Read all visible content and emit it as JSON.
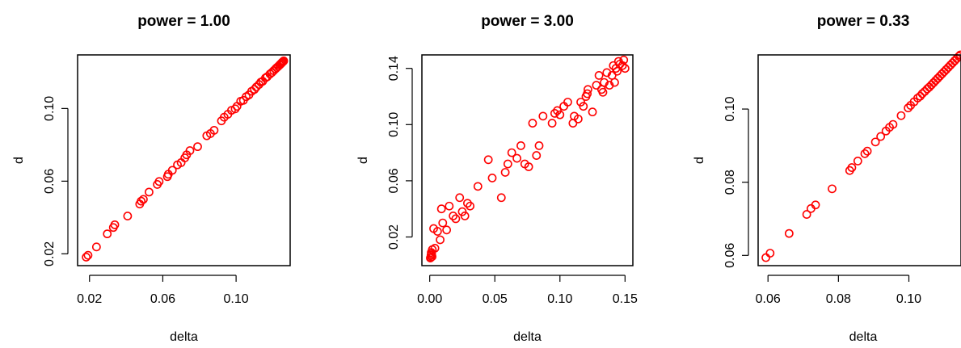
{
  "chart_data": [
    {
      "type": "scatter",
      "title": "power = 1.00",
      "xlabel": "delta",
      "ylabel": "d",
      "xlim": [
        0.0135,
        0.1295
      ],
      "ylim": [
        0.0135,
        0.1295
      ],
      "xticks": [
        "0.02",
        "0.06",
        "0.10"
      ],
      "yticks": [
        "0.02",
        "0.06",
        "0.10"
      ],
      "grid": false,
      "point_color": "#ff0000",
      "x": [
        0.0182,
        0.0192,
        0.0238,
        0.0297,
        0.033,
        0.0338,
        0.0408,
        0.0474,
        0.0482,
        0.0494,
        0.0525,
        0.057,
        0.058,
        0.0625,
        0.063,
        0.0652,
        0.068,
        0.07,
        0.072,
        0.073,
        0.0748,
        0.079,
        0.084,
        0.086,
        0.088,
        0.092,
        0.0935,
        0.0955,
        0.0975,
        0.0995,
        0.1005,
        0.1025,
        0.104,
        0.1055,
        0.107,
        0.1085,
        0.11,
        0.111,
        0.1125,
        0.1135,
        0.1145,
        0.116,
        0.117,
        0.1185,
        0.1195,
        0.1205,
        0.1215,
        0.1222,
        0.123,
        0.1238,
        0.1243,
        0.1248,
        0.1252,
        0.1256,
        0.126
      ],
      "y": [
        0.0182,
        0.0192,
        0.0238,
        0.031,
        0.0345,
        0.036,
        0.0408,
        0.0474,
        0.049,
        0.05,
        0.054,
        0.0582,
        0.0598,
        0.0625,
        0.0638,
        0.066,
        0.069,
        0.0702,
        0.0728,
        0.0745,
        0.0768,
        0.079,
        0.085,
        0.0862,
        0.088,
        0.0932,
        0.0952,
        0.0968,
        0.099,
        0.0998,
        0.1012,
        0.104,
        0.1045,
        0.1065,
        0.1075,
        0.1095,
        0.1105,
        0.1118,
        0.1132,
        0.1145,
        0.115,
        0.1168,
        0.1175,
        0.119,
        0.1198,
        0.1208,
        0.1218,
        0.1225,
        0.1232,
        0.124,
        0.1245,
        0.125,
        0.1255,
        0.1258,
        0.1262
      ]
    },
    {
      "type": "scatter",
      "title": "power = 3.00",
      "xlabel": "delta",
      "ylabel": "d",
      "xlim": [
        -0.006,
        0.156
      ],
      "ylim": [
        -0.0004,
        0.1496
      ],
      "xticks": [
        "0.00",
        "0.05",
        "0.10",
        "0.15"
      ],
      "yticks": [
        "0.02",
        "0.06",
        "0.10",
        "0.14"
      ],
      "grid": false,
      "point_color": "#ff0000",
      "x": [
        0.0005,
        0.0008,
        0.001,
        0.0012,
        0.0015,
        0.0018,
        0.002,
        0.003,
        0.004,
        0.006,
        0.008,
        0.009,
        0.01,
        0.013,
        0.015,
        0.018,
        0.02,
        0.023,
        0.025,
        0.027,
        0.029,
        0.031,
        0.037,
        0.045,
        0.048,
        0.055,
        0.058,
        0.06,
        0.063,
        0.067,
        0.07,
        0.073,
        0.076,
        0.079,
        0.082,
        0.084,
        0.087,
        0.094,
        0.096,
        0.098,
        0.1,
        0.103,
        0.106,
        0.11,
        0.111,
        0.114,
        0.116,
        0.118,
        0.12,
        0.121,
        0.1215,
        0.125,
        0.128,
        0.13,
        0.132,
        0.133,
        0.134,
        0.136,
        0.138,
        0.14,
        0.141,
        0.142,
        0.143,
        0.144,
        0.145,
        0.146,
        0.148,
        0.149,
        0.15
      ],
      "y": [
        0.005,
        0.0055,
        0.007,
        0.009,
        0.008,
        0.006,
        0.011,
        0.026,
        0.012,
        0.024,
        0.018,
        0.04,
        0.03,
        0.025,
        0.042,
        0.035,
        0.033,
        0.048,
        0.038,
        0.035,
        0.044,
        0.042,
        0.056,
        0.075,
        0.062,
        0.048,
        0.066,
        0.072,
        0.08,
        0.076,
        0.085,
        0.072,
        0.07,
        0.101,
        0.078,
        0.085,
        0.106,
        0.101,
        0.108,
        0.11,
        0.107,
        0.113,
        0.116,
        0.101,
        0.106,
        0.104,
        0.116,
        0.113,
        0.12,
        0.122,
        0.125,
        0.109,
        0.128,
        0.135,
        0.125,
        0.123,
        0.13,
        0.137,
        0.128,
        0.135,
        0.142,
        0.13,
        0.14,
        0.138,
        0.145,
        0.143,
        0.142,
        0.146,
        0.14
      ]
    },
    {
      "type": "scatter",
      "title": "power = 0.33",
      "xlabel": "delta",
      "ylabel": "d",
      "xlim": [
        0.0572,
        0.1148
      ],
      "ylim": [
        0.0572,
        0.1148
      ],
      "xticks": [
        "0.06",
        "0.08",
        "0.10"
      ],
      "yticks": [
        "0.06",
        "0.08",
        "0.10"
      ],
      "grid": false,
      "point_color": "#ff0000",
      "x": [
        0.0594,
        0.0606,
        0.066,
        0.071,
        0.0722,
        0.0735,
        0.0782,
        0.0832,
        0.0838,
        0.0855,
        0.0875,
        0.0882,
        0.0905,
        0.092,
        0.0935,
        0.0945,
        0.0955,
        0.0978,
        0.0998,
        0.1005,
        0.1015,
        0.1025,
        0.1032,
        0.1038,
        0.1045,
        0.1052,
        0.1058,
        0.1064,
        0.107,
        0.1076,
        0.1082,
        0.1088,
        0.1094,
        0.11,
        0.1106,
        0.1112,
        0.1118,
        0.1124,
        0.113,
        0.1136,
        0.1142,
        0.1146
      ],
      "y": [
        0.0594,
        0.0606,
        0.066,
        0.0712,
        0.0728,
        0.0738,
        0.0782,
        0.0832,
        0.084,
        0.0858,
        0.0878,
        0.0885,
        0.091,
        0.0925,
        0.094,
        0.095,
        0.0958,
        0.0982,
        0.1003,
        0.101,
        0.102,
        0.103,
        0.1035,
        0.1042,
        0.1048,
        0.1055,
        0.106,
        0.1066,
        0.1072,
        0.1078,
        0.1084,
        0.109,
        0.1096,
        0.1102,
        0.1108,
        0.1114,
        0.112,
        0.1126,
        0.1132,
        0.1138,
        0.1144,
        0.1148
      ]
    }
  ]
}
